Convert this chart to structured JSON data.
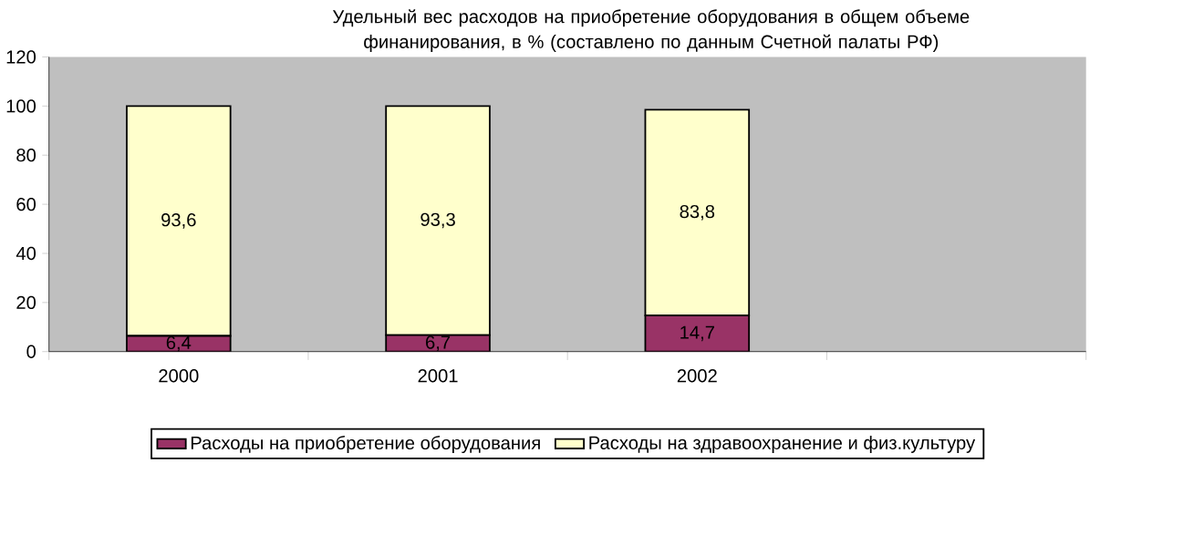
{
  "chart_data": {
    "type": "bar",
    "stacked": true,
    "title": "Удельный вес расходов на приобретение оборудования в общем объеме финанирования, в % (составлено по данным Счетной палаты РФ)",
    "categories": [
      "2000",
      "2001",
      "2002",
      null
    ],
    "series": [
      {
        "name": "Расходы на приобретение оборудования",
        "color": "#993366",
        "values": [
          6.4,
          6.7,
          14.7,
          null
        ],
        "value_labels": [
          "6,4",
          "6,7",
          "14,7",
          null
        ]
      },
      {
        "name": "Расходы на здравоохранение и физ.культуру",
        "color": "#ffffcc",
        "values": [
          93.6,
          93.3,
          83.8,
          null
        ],
        "value_labels": [
          "93,6",
          "93,3",
          "83,8",
          null
        ]
      }
    ],
    "ylim": [
      0,
      120
    ],
    "yticks": [
      0,
      20,
      40,
      60,
      80,
      100,
      120
    ],
    "grid": false,
    "legend": "bottom"
  }
}
